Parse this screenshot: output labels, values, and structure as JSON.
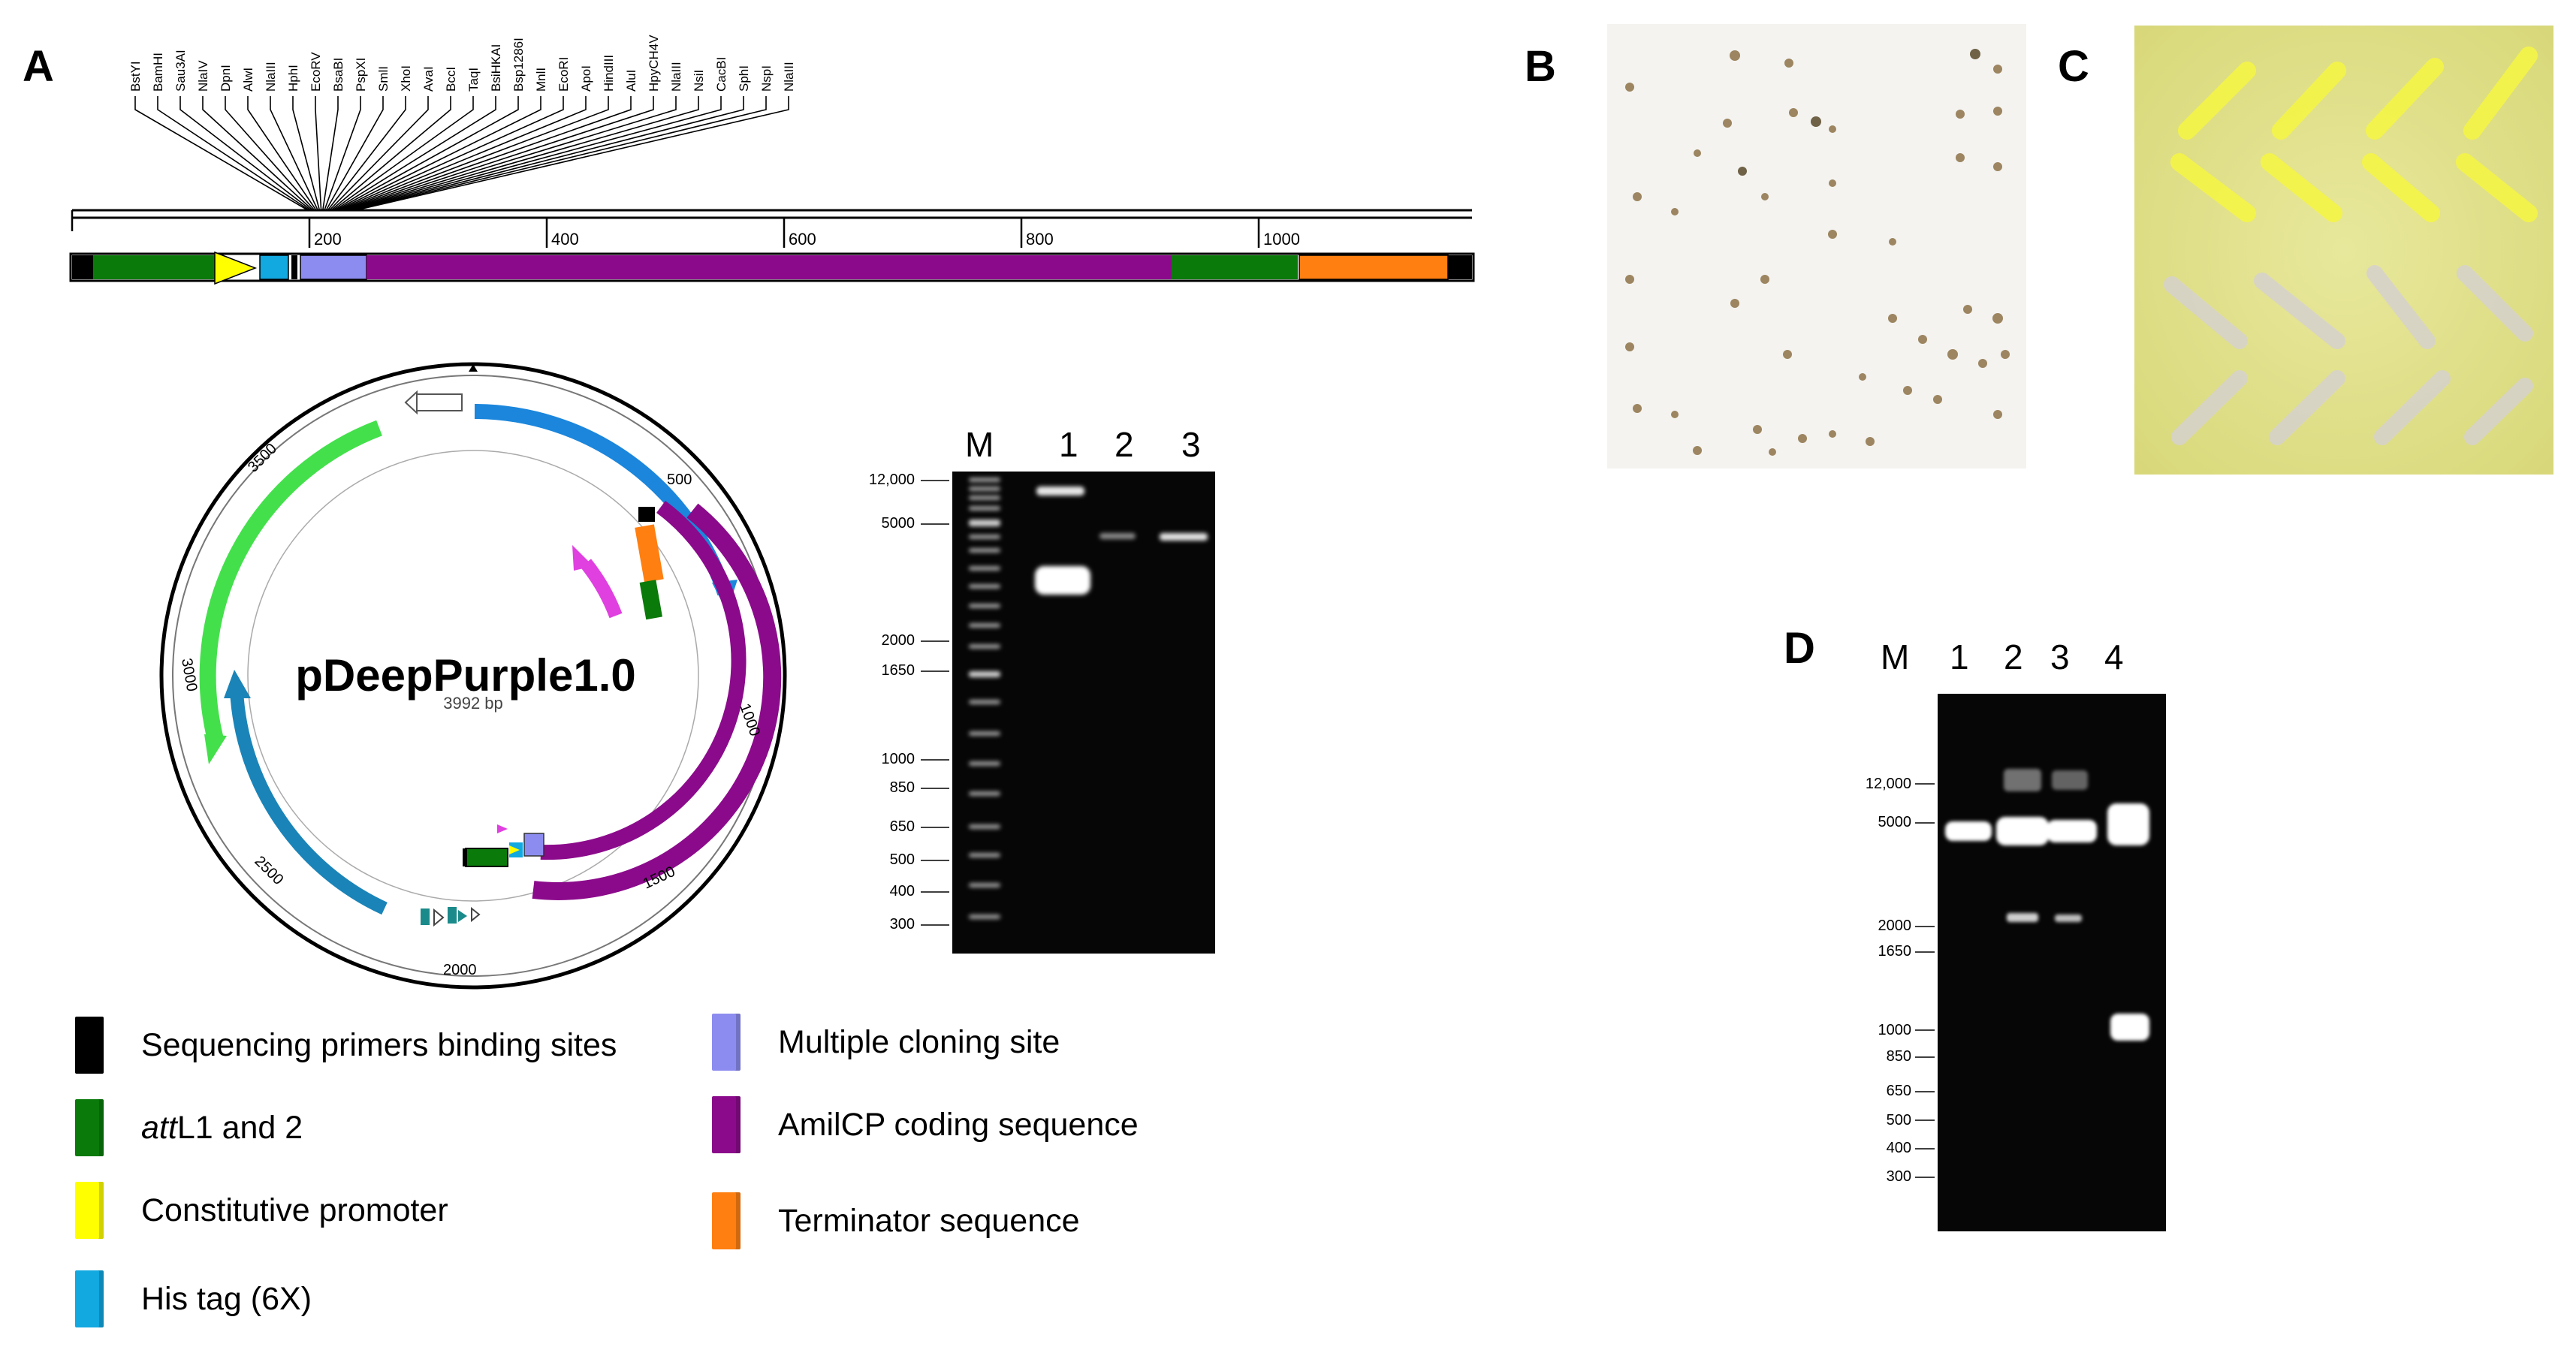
{
  "panels": {
    "a": "A",
    "b": "B",
    "c": "C",
    "d": "D"
  },
  "linear_map": {
    "ticks": [
      "200",
      "400",
      "600",
      "800",
      "1000"
    ],
    "enzymes": [
      "BstYI",
      "BamHI",
      "Sau3AI",
      "NlaIV",
      "DpnI",
      "AlwI",
      "NlaIII",
      "HphI",
      "EcoRV",
      "BsaBI",
      "PspXI",
      "SmlI",
      "XhoI",
      "AvaI",
      "BccI",
      "TaqI",
      "BsiHKAI",
      "Bsp1286I",
      "MnlI",
      "EcoRI",
      "ApoI",
      "HindIII",
      "AluI",
      "HpyCH4V",
      "NlaIII",
      "NsiI",
      "CacBI",
      "SphI",
      "NspI",
      "NlaIII"
    ]
  },
  "plasmid": {
    "name": "pDeepPurple1.0",
    "size": "3992 bp",
    "ticks": [
      "500",
      "1000",
      "1500",
      "2000",
      "2500",
      "3000",
      "3500"
    ]
  },
  "gel1": {
    "lanes": [
      "M",
      "1",
      "2",
      "3"
    ],
    "markers": [
      "12,000",
      "5000",
      "2000",
      "1650",
      "1000",
      "850",
      "650",
      "500",
      "400",
      "300"
    ]
  },
  "gel2": {
    "lanes": [
      "M",
      "1",
      "2",
      "3",
      "4"
    ],
    "markers": [
      "12,000",
      "5000",
      "2000",
      "1650",
      "1000",
      "850",
      "650",
      "500",
      "400",
      "300"
    ]
  },
  "legend": [
    {
      "label": "Sequencing primers binding sites",
      "color": "#000000"
    },
    {
      "label": "attL1 and 2",
      "italic": "att",
      "rest": "L1 and 2",
      "color": "#0a7a0a"
    },
    {
      "label": "Constitutive promoter",
      "color": "#ffff00"
    },
    {
      "label": "His tag (6X)",
      "color": "#12a8e0"
    },
    {
      "label": "Multiple cloning site",
      "color": "#8c8cf0"
    },
    {
      "label": "AmilCP coding sequence",
      "color": "#8b0a8b"
    },
    {
      "label": "Terminator sequence",
      "color": "#ff7f10"
    }
  ],
  "colors": {
    "sequencing": "#000000",
    "att": "#0a7a0a",
    "promoter": "#ffff00",
    "his": "#12a8e0",
    "mcs": "#8c8cf0",
    "amilcp": "#8b0a8b",
    "terminator": "#ff7f10",
    "light_green": "#44e04c",
    "blue_arrow": "#1b86dc",
    "teal_arrow": "#1a84b8",
    "magenta": "#e040e0"
  }
}
